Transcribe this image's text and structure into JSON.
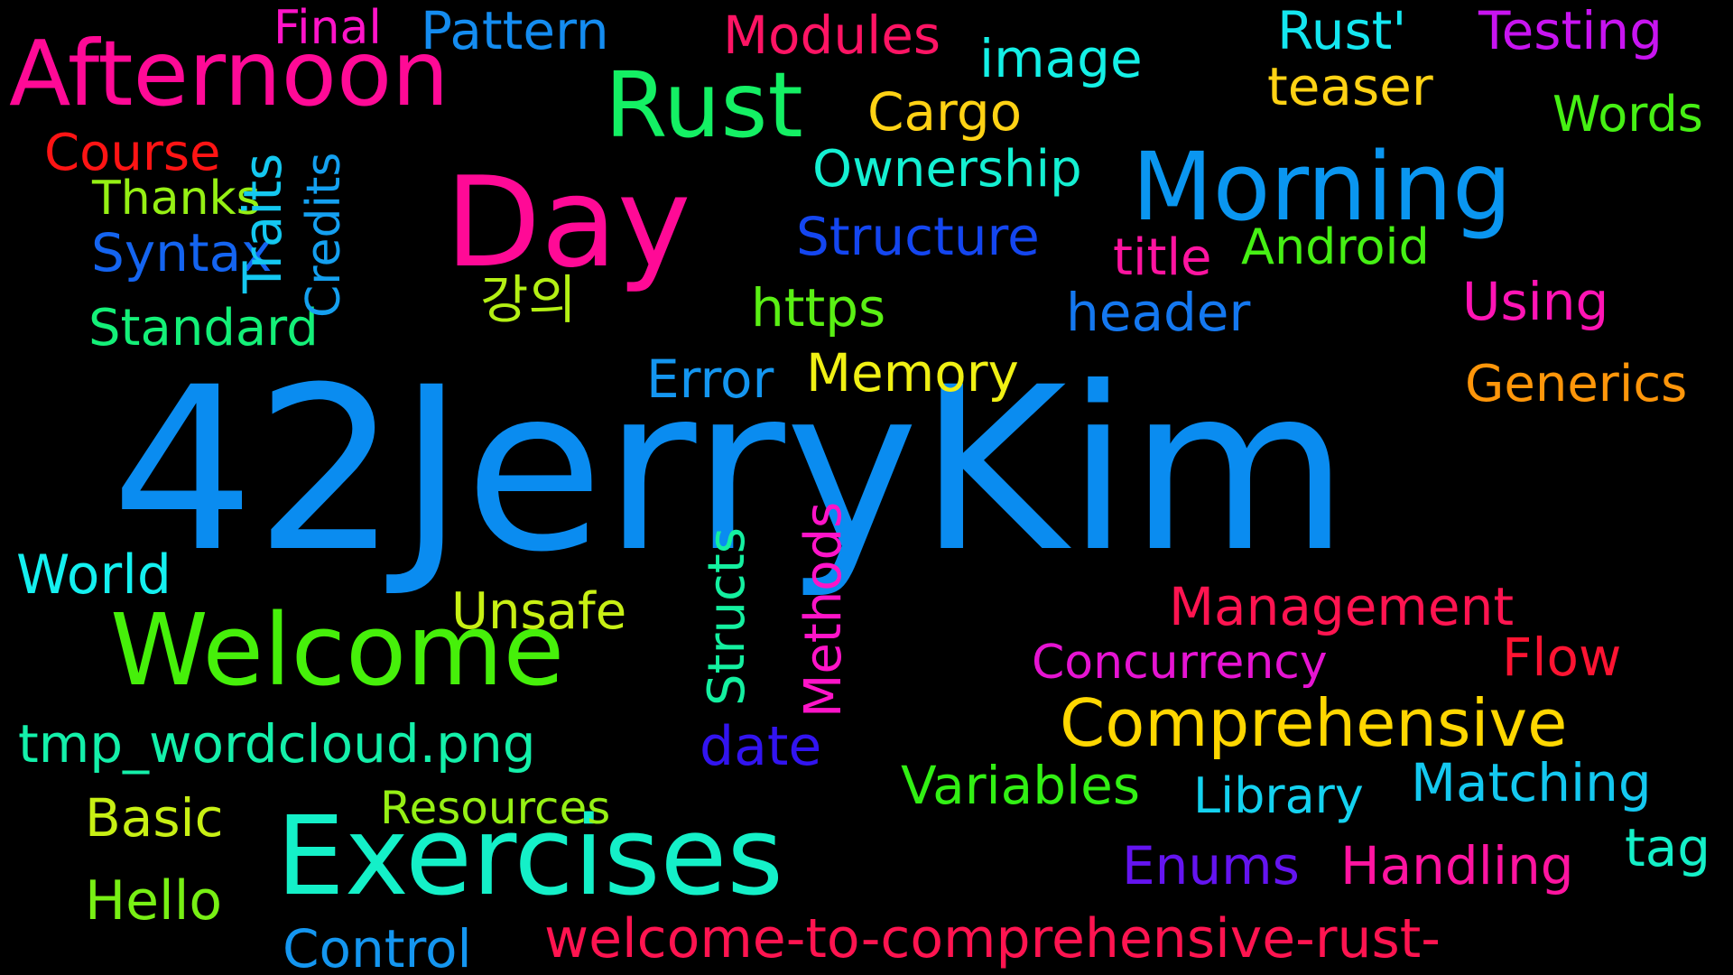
{
  "words": [
    {
      "text": "42JerryKim",
      "color": "#0a8cf0"
    },
    {
      "text": "Welcome",
      "color": "#46f00a"
    },
    {
      "text": "Exercises",
      "color": "#14f0c8"
    },
    {
      "text": "Day",
      "color": "#ff0a96"
    },
    {
      "text": "Morning",
      "color": "#0a96f0"
    },
    {
      "text": "Afternoon",
      "color": "#ff0a96"
    },
    {
      "text": "Rust",
      "color": "#14f064"
    },
    {
      "text": "Comprehensive",
      "color": "#ffd700"
    },
    {
      "text": "welcome-to-comprehensive-rust-",
      "color": "#ff1450"
    },
    {
      "text": "tmp_wordcloud.png",
      "color": "#14f0aa"
    },
    {
      "text": "Management",
      "color": "#ff1450"
    },
    {
      "text": "Concurrency",
      "color": "#e614d2"
    },
    {
      "text": "Matching",
      "color": "#14c8f0"
    },
    {
      "text": "Variables",
      "color": "#32f014"
    },
    {
      "text": "Library",
      "color": "#14d2f0"
    },
    {
      "text": "Handling",
      "color": "#ff14a0"
    },
    {
      "text": "Enums",
      "color": "#6414f0"
    },
    {
      "text": "Structs",
      "color": "#14f0a0"
    },
    {
      "text": "Methods",
      "color": "#ff14c8"
    },
    {
      "text": "Unsafe",
      "color": "#c8f014"
    },
    {
      "text": "Resources",
      "color": "#96f014"
    },
    {
      "text": "date",
      "color": "#3214f0"
    },
    {
      "text": "World",
      "color": "#14f0f0"
    },
    {
      "text": "Basic",
      "color": "#c8f014"
    },
    {
      "text": "Hello",
      "color": "#78f014"
    },
    {
      "text": "Control",
      "color": "#1496f0"
    },
    {
      "text": "Flow",
      "color": "#ff1432"
    },
    {
      "text": "tag",
      "color": "#14f0c8"
    },
    {
      "text": "Error",
      "color": "#1496f0"
    },
    {
      "text": "Memory",
      "color": "#f0f014"
    },
    {
      "text": "Generics",
      "color": "#ff960a"
    },
    {
      "text": "https",
      "color": "#5af014"
    },
    {
      "text": "header",
      "color": "#1478f0"
    },
    {
      "text": "Using",
      "color": "#ff14b4"
    },
    {
      "text": "Standard",
      "color": "#14f078"
    },
    {
      "text": "강의",
      "color": "#b4f014"
    },
    {
      "text": "Syntax",
      "color": "#1464f0"
    },
    {
      "text": "Thanks",
      "color": "#96f014"
    },
    {
      "text": "Course",
      "color": "#ff1414"
    },
    {
      "text": "Traits",
      "color": "#14c8f0"
    },
    {
      "text": "Credits",
      "color": "#14a0f0"
    },
    {
      "text": "Structure",
      "color": "#1446f0"
    },
    {
      "text": "title",
      "color": "#ff14a0"
    },
    {
      "text": "Android",
      "color": "#46f014"
    },
    {
      "text": "Ownership",
      "color": "#14f0d2"
    },
    {
      "text": "Cargo",
      "color": "#ffd214"
    },
    {
      "text": "image",
      "color": "#14f0e6"
    },
    {
      "text": "Modules",
      "color": "#ff1464"
    },
    {
      "text": "Pattern",
      "color": "#148cf0"
    },
    {
      "text": "Final",
      "color": "#ff14c8"
    },
    {
      "text": "Rust'",
      "color": "#14e6f0"
    },
    {
      "text": "teaser",
      "color": "#ffd214"
    },
    {
      "text": "Testing",
      "color": "#c814f0"
    },
    {
      "text": "Words",
      "color": "#46f014"
    }
  ]
}
